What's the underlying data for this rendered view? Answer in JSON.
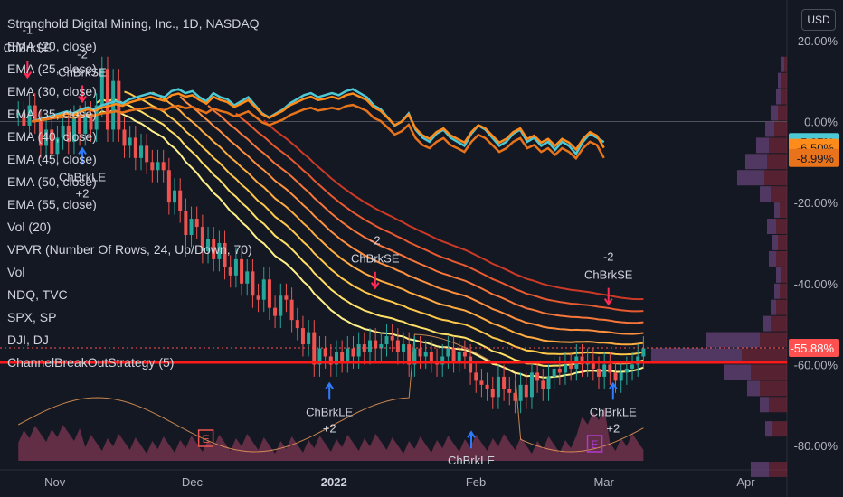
{
  "header": {
    "title": "Stronghold Digital Mining, Inc., 1D, NASDAQ",
    "currency": "USD"
  },
  "indicators": [
    "EMA (20, close)",
    "EMA (25, close)",
    "EMA (30, close)",
    "EMA (35, close)",
    "EMA (40, close)",
    "EMA (45, close)",
    "EMA (50, close)",
    "EMA (55, close)",
    "Vol (20)",
    "VPVR (Number Of Rows, 24, Up/Down, 70)",
    "Vol",
    "NDQ, TVC",
    "SPX, SP",
    "DJI, DJ",
    "ChannelBreakOutStrategy (5)"
  ],
  "colors": {
    "background": "#141823",
    "up": "#26a69a",
    "down": "#ef5350",
    "cyan": "#4dc9d6",
    "orange": "#ff8c1a",
    "darkorange": "#e8731a",
    "sell_arrow": "#ff2d55",
    "buy_arrow": "#2f7bff",
    "hline": "#ff1a1a"
  },
  "chart_data": {
    "type": "candlestick",
    "title": "Stronghold Digital Mining, Inc., 1D, NASDAQ",
    "y_axis": {
      "unit": "% change",
      "ticks": [
        "20.00%",
        "0.00%",
        "-20.00%",
        "-40.00%",
        "-60.00%",
        "-80.00%"
      ],
      "tick_values": [
        20,
        0,
        -20,
        -40,
        -60,
        -80
      ],
      "range": [
        -86,
        30
      ]
    },
    "x_axis": {
      "ticks": [
        "Nov",
        "Dec",
        "2022",
        "Feb",
        "Mar",
        "Apr"
      ],
      "tick_days": [
        12,
        42,
        73,
        104,
        132,
        163
      ],
      "range": [
        0,
        172
      ]
    },
    "price_labels": [
      {
        "label": "-5.07%",
        "value": -5.07,
        "color": "#4dc9d6"
      },
      {
        "label": "-6.50%",
        "value": -6.5,
        "color": "#ff8c1a"
      },
      {
        "label": "-8.99%",
        "value": -8.99,
        "color": "#e8731a"
      },
      {
        "label": "-55.88%",
        "value": -55.88,
        "color": "#ff5050"
      }
    ],
    "series": [
      {
        "name": "SDIG",
        "role": "price",
        "close": [
          2,
          -1,
          4,
          0,
          -6,
          -2,
          -8,
          -4,
          -1,
          -5,
          1,
          -3,
          2,
          -2,
          4,
          13,
          -2,
          10,
          -2,
          -6,
          -4,
          -9,
          -6,
          -10,
          -12,
          -10,
          -12,
          -20,
          -17,
          -22,
          -28,
          -24,
          -26,
          -32,
          -29,
          -34,
          -30,
          -36,
          -38,
          -34,
          -40,
          -37,
          -43,
          -44,
          -39,
          -46,
          -48,
          -43,
          -44,
          -49,
          -51,
          -55,
          -52,
          -60,
          -56,
          -58,
          -60,
          -57,
          -59,
          -56,
          -58,
          -55,
          -57,
          -54,
          -56,
          -55,
          -53,
          -54,
          -57,
          -55,
          -60,
          -56,
          -58,
          -57,
          -59,
          -60,
          -58,
          -56,
          -59,
          -57,
          -58,
          -62,
          -64,
          -65,
          -66,
          -68,
          -63,
          -66,
          -67,
          -69,
          -65,
          -68,
          -62,
          -64,
          -66,
          -63,
          -61,
          -62,
          -60,
          -61,
          -58,
          -60,
          -59,
          -61,
          -63,
          -60,
          -62,
          -64,
          -62,
          -61,
          -60,
          -58,
          -56
        ]
      },
      {
        "name": "NDQ, TVC",
        "color": "#4dc9d6",
        "close": [
          0,
          0.5,
          1,
          1.5,
          2,
          2.5,
          2,
          3,
          3.5,
          3,
          4,
          4.5,
          5,
          4.5,
          5.5,
          6,
          6.5,
          7,
          6.5,
          6,
          7.5,
          8,
          7,
          7.5,
          6,
          5,
          7,
          6,
          5.5,
          4,
          5,
          6,
          4,
          2,
          1,
          2,
          3,
          4.5,
          5.5,
          6.5,
          7,
          6,
          6.5,
          7,
          6.5,
          7.5,
          8,
          7,
          6,
          4,
          3,
          1,
          -1,
          0,
          2,
          -2,
          -4,
          -5,
          -3,
          -2,
          -4,
          -5,
          -6,
          -3,
          -1,
          -2,
          -4,
          -6,
          -5,
          -3,
          -2,
          -5,
          -4,
          -6,
          -5,
          -7,
          -5,
          -6,
          -8,
          -5,
          -3,
          -4,
          -5.07
        ]
      },
      {
        "name": "SPX, SP",
        "color": "#ff8c1a",
        "close": [
          0,
          0.3,
          0.8,
          1.2,
          1.5,
          2,
          1.6,
          2.5,
          3,
          2.6,
          3.4,
          3.8,
          4.3,
          3.9,
          4.7,
          5.2,
          5.6,
          6.1,
          5.6,
          5.1,
          6.5,
          6.9,
          6.1,
          6.5,
          5.3,
          4.4,
          6.1,
          5.3,
          4.8,
          3.6,
          4.4,
          5.3,
          3.6,
          1.8,
          0.9,
          1.8,
          2.7,
          4,
          4.8,
          5.6,
          6.1,
          5.3,
          5.6,
          6.1,
          5.6,
          6.5,
          6.9,
          6.1,
          5.3,
          3.5,
          2.6,
          0.9,
          -0.9,
          0,
          1.7,
          -1.7,
          -3.4,
          -4.3,
          -2.6,
          -1.7,
          -3.4,
          -4.3,
          -5.2,
          -2.6,
          -0.9,
          -1.7,
          -3.5,
          -5.2,
          -4.3,
          -2.6,
          -1.7,
          -4.3,
          -3.5,
          -5.2,
          -4.3,
          -6,
          -4.3,
          -5.2,
          -6.9,
          -4.3,
          -2.6,
          -3.5,
          -6.5
        ]
      },
      {
        "name": "DJI, DJ",
        "color": "#e8731a",
        "close": [
          0,
          0.2,
          0.5,
          0.8,
          1,
          1.2,
          0.9,
          1.4,
          1.7,
          1.5,
          2,
          2.2,
          2.5,
          2.2,
          2.7,
          3,
          3.2,
          3.5,
          3.1,
          2.8,
          3.6,
          3.9,
          3.3,
          3.6,
          2.8,
          2.1,
          3.2,
          2.6,
          2.2,
          1.3,
          1.8,
          2.5,
          1.2,
          -0.2,
          -0.9,
          -0.2,
          0.5,
          1.6,
          2.3,
          3,
          3.4,
          2.7,
          3,
          3.4,
          3,
          3.8,
          4.1,
          3.4,
          2.6,
          0.9,
          0.1,
          -1.5,
          -3.2,
          -2.4,
          -0.8,
          -4.1,
          -5.8,
          -6.6,
          -5,
          -4.1,
          -5.8,
          -6.6,
          -7.5,
          -5,
          -3.3,
          -4.1,
          -5.8,
          -7.5,
          -6.6,
          -5,
          -4.1,
          -6.6,
          -5.8,
          -7.5,
          -6.6,
          -8.2,
          -6.6,
          -7.5,
          -9.1,
          -6.6,
          -5,
          -5.8,
          -8.99
        ]
      }
    ],
    "signals": [
      {
        "label": "-1",
        "label2": "ChBrkSE",
        "type": "sell"
      },
      {
        "label": "-2",
        "label2": "ChBrkSE",
        "type": "sell"
      },
      {
        "label": "ChBrkLE",
        "label2": "+2",
        "type": "buy"
      },
      {
        "label": "-2",
        "label2": "ChBrkSE",
        "type": "sell"
      },
      {
        "label": "ChBrkLE",
        "label2": "+2",
        "type": "buy"
      },
      {
        "label": "ChBrkLE",
        "label2": "",
        "type": "buy"
      },
      {
        "label": "-2",
        "label2": "ChBrkSE",
        "type": "sell"
      },
      {
        "label": "ChBrkLE",
        "label2": "+2",
        "type": "buy"
      }
    ],
    "earnings_marker": "E",
    "grid": false,
    "legend": "top-left"
  }
}
